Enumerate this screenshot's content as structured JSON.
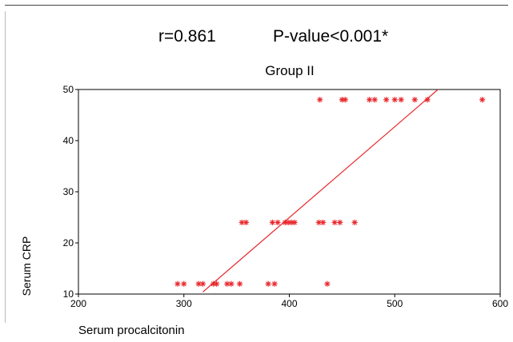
{
  "stats": {
    "r_label": "r=0.861",
    "p_label": "P-value<0.001*"
  },
  "colors": {
    "points": "#e8262b",
    "fit_line": "#e8262b",
    "axis": "#000000",
    "rule": "#444444"
  },
  "chart_data": {
    "type": "scatter",
    "title": "Group II",
    "xlabel": "Serum procalcitonin",
    "ylabel": "Serum CRP",
    "xlim": [
      200,
      600
    ],
    "ylim": [
      10,
      50
    ],
    "xticks": [
      200,
      300,
      400,
      500,
      600
    ],
    "yticks": [
      10,
      20,
      30,
      40,
      50
    ],
    "grid": false,
    "marker": "asterisk",
    "points": [
      {
        "x": 294,
        "y": 12
      },
      {
        "x": 300,
        "y": 12
      },
      {
        "x": 314,
        "y": 12
      },
      {
        "x": 318,
        "y": 12
      },
      {
        "x": 328,
        "y": 12
      },
      {
        "x": 331,
        "y": 12
      },
      {
        "x": 341,
        "y": 12
      },
      {
        "x": 345,
        "y": 12
      },
      {
        "x": 353,
        "y": 12
      },
      {
        "x": 380,
        "y": 12
      },
      {
        "x": 386,
        "y": 12
      },
      {
        "x": 436,
        "y": 12
      },
      {
        "x": 355,
        "y": 24
      },
      {
        "x": 359,
        "y": 24
      },
      {
        "x": 384,
        "y": 24
      },
      {
        "x": 389,
        "y": 24
      },
      {
        "x": 396,
        "y": 24
      },
      {
        "x": 399,
        "y": 24
      },
      {
        "x": 402,
        "y": 24
      },
      {
        "x": 405,
        "y": 24
      },
      {
        "x": 428,
        "y": 24
      },
      {
        "x": 432,
        "y": 24
      },
      {
        "x": 443,
        "y": 24
      },
      {
        "x": 448,
        "y": 24
      },
      {
        "x": 462,
        "y": 24
      },
      {
        "x": 429,
        "y": 48
      },
      {
        "x": 450,
        "y": 48
      },
      {
        "x": 453,
        "y": 48
      },
      {
        "x": 476,
        "y": 48
      },
      {
        "x": 481,
        "y": 48
      },
      {
        "x": 492,
        "y": 48
      },
      {
        "x": 500,
        "y": 48
      },
      {
        "x": 506,
        "y": 48
      },
      {
        "x": 519,
        "y": 48
      },
      {
        "x": 531,
        "y": 48
      },
      {
        "x": 583,
        "y": 48
      }
    ],
    "fit_line": {
      "x": [
        318,
        541
      ],
      "y": [
        10.4,
        50
      ]
    }
  }
}
